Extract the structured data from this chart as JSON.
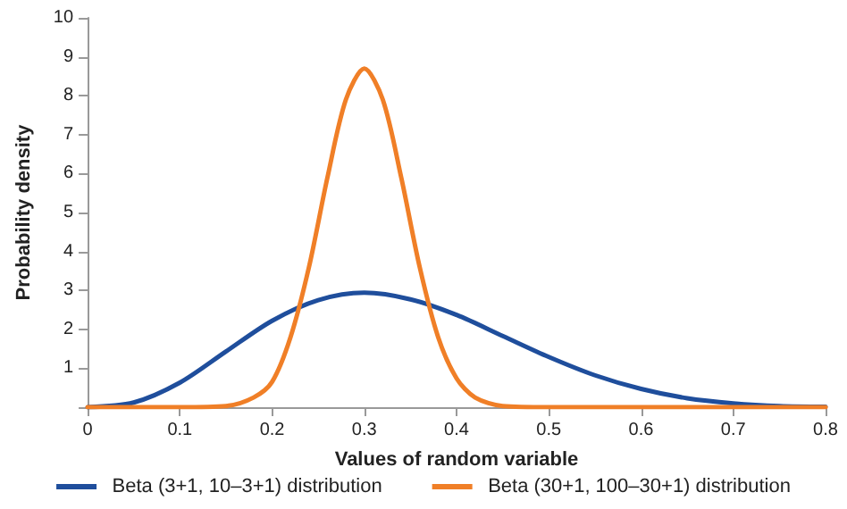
{
  "chart_data": {
    "type": "line",
    "xlabel": "Values of random variable",
    "ylabel": "Probability density",
    "xlim": [
      0,
      0.8
    ],
    "xticks": [
      0,
      0.1,
      0.2,
      0.3,
      0.4,
      0.5,
      0.6,
      0.7,
      0.8
    ],
    "ylim": [
      0,
      10
    ],
    "yticks": [
      {
        "value": 0,
        "label": null
      },
      1,
      2,
      3,
      4,
      5,
      6,
      7,
      8,
      9,
      10
    ],
    "grid": false,
    "legend": "bottom",
    "marker": "none",
    "line_style": "solid",
    "series": [
      {
        "name": "Beta (3+1, 10–3+1) distribution",
        "color": "#1f4e9c",
        "x": [
          0,
          0.05,
          0.1,
          0.15,
          0.2,
          0.25,
          0.3,
          0.35,
          0.4,
          0.45,
          0.5,
          0.55,
          0.6,
          0.65,
          0.7,
          0.75,
          0.8
        ],
        "values": [
          0,
          0.12,
          0.63,
          1.43,
          2.22,
          2.75,
          2.94,
          2.77,
          2.37,
          1.83,
          1.29,
          0.82,
          0.47,
          0.23,
          0.1,
          0.03,
          0.01
        ]
      },
      {
        "name": "Beta (30+1, 100–30+1) distribution",
        "color": "#f07f27",
        "x": [
          0,
          0.1,
          0.15,
          0.18,
          0.2,
          0.22,
          0.24,
          0.26,
          0.28,
          0.3,
          0.32,
          0.34,
          0.36,
          0.38,
          0.4,
          0.42,
          0.45,
          0.5,
          0.6,
          0.7,
          0.8
        ],
        "values": [
          0,
          0,
          0.03,
          0.25,
          0.65,
          1.8,
          3.6,
          5.9,
          7.9,
          8.7,
          7.9,
          5.9,
          3.6,
          1.8,
          0.74,
          0.25,
          0.03,
          0,
          0,
          0,
          0
        ]
      }
    ]
  }
}
